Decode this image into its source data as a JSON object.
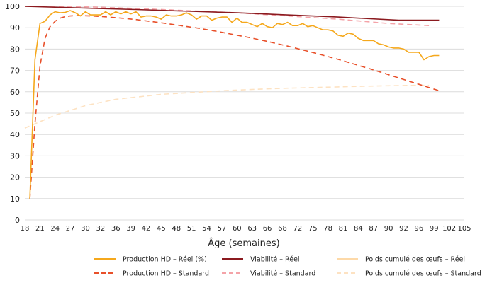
{
  "chart_data": {
    "type": "line",
    "title": "",
    "xlabel": "Âge (semaines)",
    "ylabel": "",
    "ylim": [
      0,
      100
    ],
    "yticks": [
      0,
      10,
      20,
      30,
      40,
      50,
      60,
      70,
      80,
      90,
      100
    ],
    "xtick_labels": [
      "18",
      "21",
      "24",
      "27",
      "30",
      "32",
      "36",
      "39",
      "42",
      "45",
      "48",
      "51",
      "54",
      "57",
      "60",
      "63",
      "66",
      "68",
      "72",
      "75",
      "78",
      "81",
      "84",
      "87",
      "90",
      "92",
      "96",
      "99",
      "102",
      "105"
    ],
    "x_range_weeks": [
      18,
      105
    ],
    "grid": true,
    "legend_position": "bottom",
    "series": [
      {
        "name": "Production HD – Réel (%)",
        "color": "#F5A81C",
        "style": "solid",
        "x": [
          19,
          20,
          21,
          22,
          23,
          24,
          25,
          26,
          27,
          28,
          29,
          30,
          31,
          32,
          33,
          34,
          35,
          36,
          37,
          38,
          39,
          40,
          41,
          42,
          43,
          44,
          45,
          46,
          47,
          48,
          49,
          50,
          51,
          52,
          53,
          54,
          55,
          56,
          57,
          58,
          59,
          60,
          61,
          62,
          63,
          64,
          65,
          66,
          67,
          68,
          69,
          70,
          71,
          72,
          73,
          74,
          75,
          76,
          77,
          78,
          79,
          80,
          81,
          82,
          83,
          84,
          85,
          86,
          87,
          88,
          89,
          90,
          91,
          92,
          93,
          94,
          95,
          96,
          97,
          98,
          99,
          100
        ],
        "values": [
          10,
          75,
          92,
          93,
          96,
          97.5,
          97,
          97.2,
          98,
          97,
          95.5,
          97.5,
          96,
          96,
          96,
          97.5,
          96,
          97.5,
          96.5,
          97.5,
          96.5,
          97.5,
          95,
          95.5,
          95.5,
          95,
          94,
          96,
          95.5,
          95.5,
          96,
          97,
          96,
          94,
          95.5,
          95.5,
          93.5,
          94.5,
          95,
          95,
          92.5,
          94.5,
          92.5,
          92.5,
          91.5,
          90.5,
          92,
          90.5,
          90,
          92,
          91.5,
          92.5,
          91,
          91,
          92,
          90.5,
          91,
          90,
          89,
          89,
          88.5,
          86.5,
          86,
          87.5,
          87,
          85,
          84,
          84,
          84,
          82.5,
          82,
          81,
          80.5,
          80.5,
          80,
          78.5,
          78.5,
          78.5,
          75,
          76.5,
          77,
          77
        ]
      },
      {
        "name": "Production HD – Standard",
        "color": "#E8502A",
        "style": "dashed",
        "x": [
          19,
          20,
          21,
          22,
          23,
          24,
          25,
          26,
          27,
          28,
          30,
          32,
          34,
          36,
          38,
          40,
          42,
          44,
          46,
          48,
          50,
          52,
          54,
          56,
          58,
          60,
          62,
          64,
          66,
          68,
          70,
          72,
          74,
          76,
          78,
          80,
          82,
          84,
          86,
          88,
          90,
          92,
          94,
          96,
          98,
          100
        ],
        "values": [
          10,
          45,
          72,
          85,
          90.5,
          93,
          94.5,
          95.2,
          95.5,
          95.7,
          95.6,
          95.4,
          95.1,
          94.7,
          94.3,
          93.8,
          93.2,
          92.6,
          92,
          91.3,
          90.6,
          89.9,
          89.1,
          88.3,
          87.4,
          86.5,
          85.6,
          84.6,
          83.6,
          82.5,
          81.4,
          80.2,
          79,
          77.8,
          76.5,
          75.2,
          73.8,
          72.4,
          71,
          69.5,
          68,
          66.5,
          65,
          63.5,
          62,
          60.5
        ]
      },
      {
        "name": "Viabilité – Réel",
        "color": "#8B1A1F",
        "style": "solid",
        "x": [
          18,
          40,
          60,
          80,
          92,
          100
        ],
        "values": [
          100,
          98.5,
          97,
          95,
          93.5,
          93.5
        ]
      },
      {
        "name": "Viabilité – Standard",
        "color": "#F4A3A8",
        "style": "dashed",
        "x": [
          18,
          30,
          40,
          50,
          60,
          70,
          80,
          90,
          98
        ],
        "values": [
          100,
          99.8,
          99,
          98,
          97,
          95.5,
          94,
          92,
          91
        ]
      },
      {
        "name": "Poids cumulé des œufs – Réel",
        "color": "#FDD9A8",
        "style": "solid",
        "x": [],
        "values": []
      },
      {
        "name": "Poids cumulé des œufs – Standard",
        "color": "#FDE2C2",
        "style": "dashed",
        "x": [
          18,
          20,
          22,
          24,
          26,
          28,
          30,
          33,
          36,
          40,
          45,
          50,
          55,
          60,
          65,
          70,
          75,
          80,
          85,
          90,
          95,
          98
        ],
        "values": [
          43,
          45,
          47,
          49,
          50.5,
          52,
          53.5,
          55,
          56.5,
          57.5,
          58.8,
          59.5,
          60.2,
          60.8,
          61.3,
          61.7,
          62,
          62.3,
          62.6,
          62.8,
          63,
          63
        ]
      }
    ]
  }
}
